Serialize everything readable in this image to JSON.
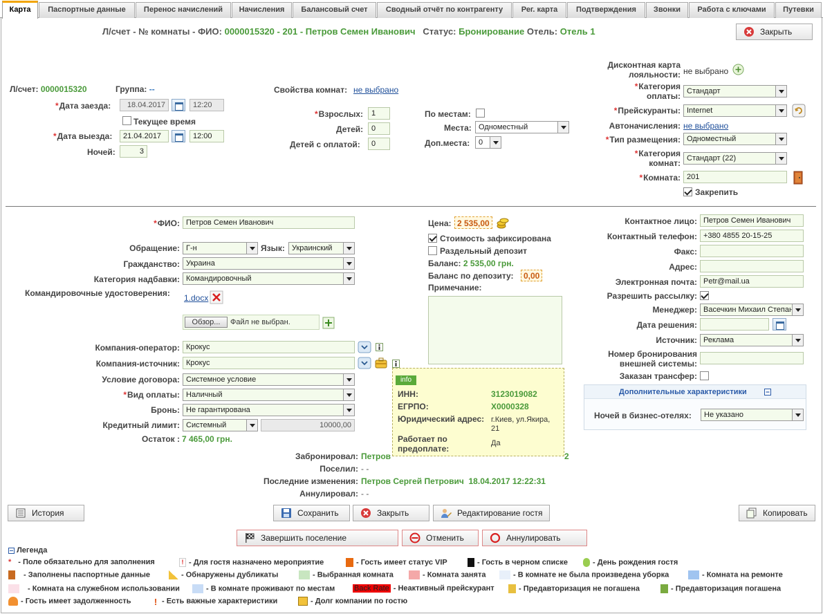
{
  "tabs": [
    "Карта",
    "Паспортные данные",
    "Перенос начислений",
    "Начисления",
    "Балансовый счет",
    "Сводный отчёт по контрагенту",
    "Рег. карта",
    "Подтверждения",
    "Звонки",
    "Работа с ключами",
    "Путевки"
  ],
  "header": {
    "prefix": "Л/счет - № комнаты - ФИО:",
    "account": "0000015320",
    "dash1": "-",
    "room": "201",
    "dash2": "-",
    "guest": "Петров Семен Иванович",
    "status_label": "Статус:",
    "status": "Бронирование",
    "hotel_label": "Отель:",
    "hotel": "Отель 1",
    "close_btn": "Закрыть"
  },
  "stay": {
    "account_label": "Л/счет:",
    "account": "0000015320",
    "group_label": "Группа:",
    "group": "--",
    "checkin_label": "Дата заезда:",
    "checkin_date": "18.04.2017",
    "checkin_time": "12:20",
    "current_time_label": "Текущее время",
    "checkout_label": "Дата выезда:",
    "checkout_date": "21.04.2017",
    "checkout_time": "12:00",
    "nights_label": "Ночей:",
    "nights": "3"
  },
  "room_props": {
    "label": "Свойства комнат:",
    "value": "не выбрано",
    "adults_label": "Взрослых:",
    "adults": "1",
    "children_label": "Детей:",
    "children": "0",
    "paid_children_label": "Детей с оплатой:",
    "paid_children": "0",
    "by_places_label": "По местам:",
    "places_label": "Места:",
    "places": "Одноместный",
    "extra_label": "Доп.места:",
    "extra": "0"
  },
  "right_top": {
    "discount_label1": "Дисконтная карта",
    "discount_label2": "лояльности:",
    "discount": "не выбрано",
    "pay_cat_label1": "Категория",
    "pay_cat_label2": "оплаты:",
    "pay_cat": "Стандарт",
    "price_label": "Прейскуранты:",
    "price": "Internet",
    "autocharge_label": "Автоначисления:",
    "autocharge": "не выбрано",
    "placement_label": "Тип размещения:",
    "placement": "Одноместный",
    "room_cat_label1": "Категория",
    "room_cat_label2": "комнат:",
    "room_cat": "Стандарт (22)",
    "room_label": "Комната:",
    "room": "201",
    "fix_label": "Закрепить"
  },
  "guest": {
    "fio_label": "ФИО:",
    "fio": "Петров Семен Иванович",
    "title_label": "Обращение:",
    "title": "Г-н",
    "lang_label": "Язык:",
    "lang": "Украинский",
    "citizenship_label": "Гражданство:",
    "citizenship": "Украина",
    "surcharge_label": "Категория надбавки:",
    "surcharge": "Командировочный",
    "certs_label": "Командировочные удостоверения:",
    "cert_file": "1.docx",
    "browse": "Обзор...",
    "no_file": "Файл не выбран.",
    "operator_label": "Компания-оператор:",
    "operator": "Крокус",
    "source_label": "Компания-источник:",
    "source": "Крокус",
    "contract_label": "Условие договора:",
    "contract": "Системное условие",
    "paytype_label": "Вид оплаты:",
    "paytype": "Наличный",
    "booking_label": "Бронь:",
    "booking": "Не гарантирована",
    "credit_label": "Кредитный лимит:",
    "credit_type": "Системный",
    "credit_amount": "10000,00",
    "rest_label": "Остаток :",
    "rest": "7 465,00 грн."
  },
  "price": {
    "label": "Цена:",
    "value": "2 535,00",
    "fixed_label": "Стоимость зафиксирована",
    "deposit_label": "Раздельный депозит",
    "balance_label": "Баланс:",
    "balance": "2 535,00 грн.",
    "deposit_balance_label": "Баланс по депозиту:",
    "deposit_balance": "0,00",
    "note_label": "Примечание:"
  },
  "info_popup": {
    "tag": "info",
    "inn_label": "ИНН:",
    "inn": "3123019082",
    "egrpo_label": "ЕГРПО:",
    "egrpo": "X0000328",
    "addr_label": "Юридический адрес:",
    "addr": "г.Киев, ул.Якира, 21",
    "prepay_label1": "Работает по",
    "prepay_label2": "предоплате:",
    "prepay": "Да"
  },
  "audit": {
    "booked_label": "Забронировал:",
    "booked": "Петров",
    "booked_tail": "2",
    "settled_label": "Поселил:",
    "settled": "-  -",
    "changed_label": "Последние изменения:",
    "changed": "Петров Сергей Петрович  18.04.2017 12:22:31",
    "cancelled_label": "Аннулировал:",
    "cancelled": "- -"
  },
  "contact": {
    "person_label": "Контактное лицо:",
    "person": "Петров Семен Иванович",
    "phone_label": "Контактный телефон:",
    "phone": "+380 4855 20-15-25",
    "fax_label": "Факс:",
    "address_label": "Адрес:",
    "email_label": "Электронная почта:",
    "email": "Petr@mail.ua",
    "mailing_label": "Разрешить рассылку:",
    "manager_label": "Менеджер:",
    "manager": "Васечкин Михаил Степан",
    "decision_label": "Дата решения:",
    "source_label": "Источник:",
    "source": "Реклама",
    "extnum_label1": "Номер бронирования",
    "extnum_label2": "внешней системы:",
    "transfer_label": "Заказан трансфер:",
    "extra_title": "Дополнительные характеристики",
    "business_label": "Ночей в бизнес-отелях:",
    "business": "Не указано"
  },
  "buttons": {
    "history": "История",
    "save": "Сохранить",
    "close": "Закрыть",
    "edit_guest": "Редактирование гостя",
    "copy": "Копировать",
    "finish": "Завершить поселение",
    "cancel": "Отменить",
    "annul": "Аннулировать"
  },
  "legend": {
    "title": "Легенда",
    "items": [
      "- Поле обязательно для заполнения",
      "- Для гостя назначено мероприятие",
      "- Гость имеет статус VIP",
      "- Гость в черном списке",
      "- День рождения гостя",
      "- Заполнены паспортные данные",
      "- Обнаружены дубликаты",
      "- Выбранная комната",
      "- Комната занята",
      "- В комнате не была произведена уборка",
      "- Комната на ремонте",
      "- Комната на служебном использовании",
      "- В комнате проживают по местам",
      "Back Rate",
      "- Неактивный прейскурант",
      "- Предавторизация не погашена",
      "- Предавторизация погашена",
      "- Гость имеет задолженность",
      "- Есть важные характеристики",
      "- Долг компании по гостю"
    ]
  },
  "colors": {
    "accent_green": "#4a9a3a",
    "tab_active": "#f2a400",
    "required": "#d33333"
  }
}
